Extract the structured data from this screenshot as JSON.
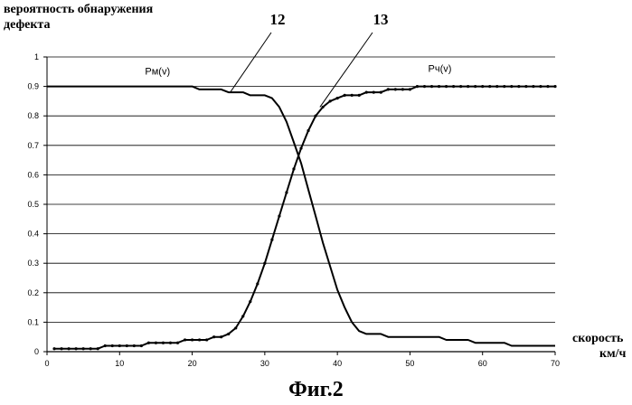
{
  "figure": {
    "caption": "Фиг.2"
  },
  "chart_data": {
    "type": "line",
    "title": "",
    "ylabel": "вероятность обнаружения дефекта",
    "xlabel": "скорость км/ч",
    "xlim": [
      0,
      70
    ],
    "ylim": [
      0,
      1
    ],
    "x_ticks": [
      "0",
      "10",
      "20",
      "30",
      "40",
      "50",
      "60",
      "70"
    ],
    "y_ticks": [
      "0",
      "0.1",
      "0.2",
      "0.3",
      "0.4",
      "0.5",
      "0.6",
      "0.7",
      "0.8",
      "0.9",
      "1"
    ],
    "grid": "horizontal",
    "reference_labels": [
      "12",
      "13"
    ],
    "series": [
      {
        "name": "Pм(v)",
        "reference": "12",
        "marker": "none",
        "x": [
          0,
          10,
          19,
          20,
          21,
          24,
          25,
          26,
          27,
          28,
          29,
          30,
          31,
          32,
          33,
          34,
          35,
          36,
          37,
          38,
          39,
          40,
          41,
          42,
          43,
          44,
          45,
          46,
          47,
          49,
          50,
          54,
          55,
          58,
          59,
          63,
          64,
          65,
          70
        ],
        "y": [
          0.9,
          0.9,
          0.9,
          0.9,
          0.89,
          0.89,
          0.88,
          0.88,
          0.88,
          0.87,
          0.87,
          0.87,
          0.86,
          0.83,
          0.78,
          0.71,
          0.64,
          0.55,
          0.46,
          0.37,
          0.29,
          0.21,
          0.15,
          0.1,
          0.07,
          0.06,
          0.06,
          0.06,
          0.05,
          0.05,
          0.05,
          0.05,
          0.04,
          0.04,
          0.03,
          0.03,
          0.02,
          0.02,
          0.02
        ]
      },
      {
        "name": "Pч(v)",
        "reference": "13",
        "marker": "dot",
        "x": [
          1,
          2,
          3,
          4,
          5,
          6,
          7,
          8,
          9,
          10,
          11,
          12,
          13,
          14,
          15,
          16,
          17,
          18,
          19,
          20,
          21,
          22,
          23,
          24,
          25,
          26,
          27,
          28,
          29,
          30,
          31,
          32,
          33,
          34,
          35,
          36,
          37,
          38,
          39,
          40,
          41,
          42,
          43,
          44,
          45,
          46,
          47,
          48,
          49,
          50,
          51,
          52,
          53,
          54,
          55,
          56,
          57,
          58,
          59,
          60,
          61,
          62,
          63,
          64,
          65,
          66,
          67,
          68,
          69,
          70
        ],
        "y": [
          0.01,
          0.01,
          0.01,
          0.01,
          0.01,
          0.01,
          0.01,
          0.02,
          0.02,
          0.02,
          0.02,
          0.02,
          0.02,
          0.03,
          0.03,
          0.03,
          0.03,
          0.03,
          0.04,
          0.04,
          0.04,
          0.04,
          0.05,
          0.05,
          0.06,
          0.08,
          0.12,
          0.17,
          0.23,
          0.3,
          0.38,
          0.46,
          0.54,
          0.62,
          0.69,
          0.75,
          0.8,
          0.83,
          0.85,
          0.86,
          0.87,
          0.87,
          0.87,
          0.88,
          0.88,
          0.88,
          0.89,
          0.89,
          0.89,
          0.89,
          0.9,
          0.9,
          0.9,
          0.9,
          0.9,
          0.9,
          0.9,
          0.9,
          0.9,
          0.9,
          0.9,
          0.9,
          0.9,
          0.9,
          0.9,
          0.9,
          0.9,
          0.9,
          0.9,
          0.9
        ]
      }
    ]
  }
}
